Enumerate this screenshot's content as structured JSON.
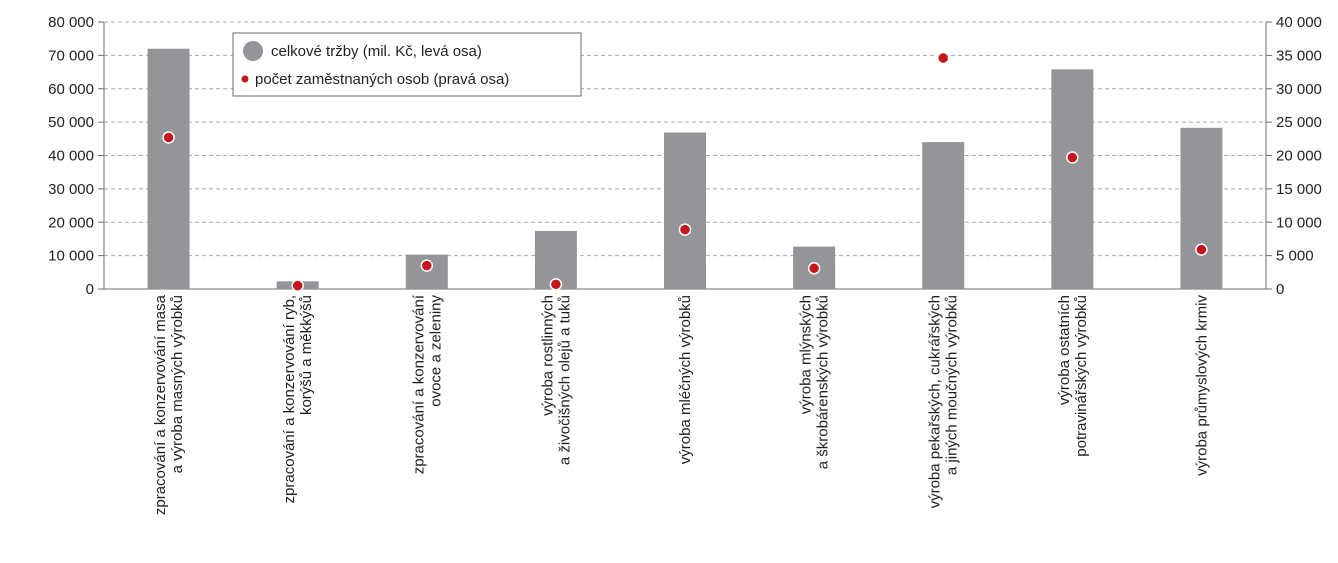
{
  "chart_data": {
    "type": "bar",
    "categories": [
      [
        "zpracování a konzervování masa",
        "a výroba masných výrobků"
      ],
      [
        "zpracování a konzervování ryb,",
        "korýšů a měkkýšů"
      ],
      [
        "zpracování a konzervování",
        "ovoce a zeleniny"
      ],
      [
        "výroba rostlinných",
        "a živočišných olejů a tuků"
      ],
      [
        "výroba mléčných výrobků"
      ],
      [
        "výroba mlýnských",
        "a škrobárenských výrobků"
      ],
      [
        "výroba pekařských, cukrářských",
        "a jiných moučných výrobků"
      ],
      [
        "výroba ostatních",
        "potravinářských výrobků"
      ],
      [
        "výroba průmyslových krmiv"
      ]
    ],
    "series": [
      {
        "name": "celkové tržby (mil. Kč, levá osa)",
        "axis": "left",
        "kind": "bar",
        "color": "#939598",
        "values": [
          72000,
          2300,
          10300,
          17400,
          46900,
          12700,
          44000,
          65800,
          48300
        ]
      },
      {
        "name": "počet zaměstnaných osob (pravá osa)",
        "axis": "right",
        "kind": "point",
        "color": "#c4161c",
        "values": [
          22700,
          500,
          3500,
          700,
          8900,
          3100,
          34600,
          19700,
          5900
        ]
      }
    ],
    "ylim_left": [
      0,
      80000
    ],
    "ylim_right": [
      0,
      40000
    ],
    "yticks_left": [
      "0",
      "10 000",
      "20 000",
      "30 000",
      "40 000",
      "50 000",
      "60 000",
      "70 000",
      "80 000"
    ],
    "yticks_right": [
      "0",
      "5 000",
      "10 000",
      "15 000",
      "20 000",
      "25 000",
      "30 000",
      "35 000",
      "40 000"
    ],
    "grid": "horizontal dashed",
    "legend_position": "top-left"
  }
}
